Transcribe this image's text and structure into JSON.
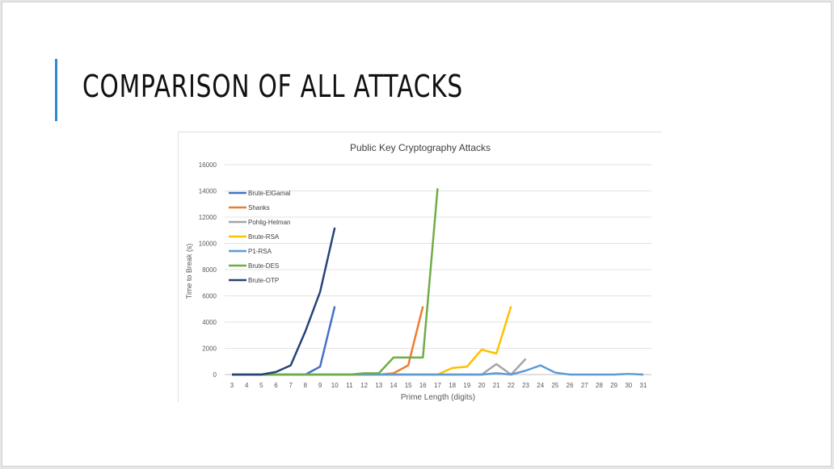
{
  "slide": {
    "title": "COMPARISON OF ALL ATTACKS"
  },
  "chart_data": {
    "type": "line",
    "title": "Public Key Cryptography Attacks",
    "xlabel": "Prime Length (digits)",
    "ylabel": "Time to Break (s)",
    "ylim": [
      0,
      16000
    ],
    "yticks": [
      0,
      2000,
      4000,
      6000,
      8000,
      10000,
      12000,
      14000,
      16000
    ],
    "categories": [
      "3",
      "4",
      "5",
      "6",
      "7",
      "8",
      "9",
      "10",
      "11",
      "12",
      "13",
      "14",
      "15",
      "16",
      "17",
      "18",
      "19",
      "20",
      "21",
      "22",
      "23",
      "24",
      "25",
      "26",
      "27",
      "28",
      "29",
      "30",
      "31"
    ],
    "grid": true,
    "legend_position": "top-left",
    "series": [
      {
        "name": "Brute-ElGamal",
        "color": "#4472c4",
        "values": [
          0,
          0,
          0,
          0,
          0,
          0,
          600,
          5200,
          null,
          null,
          null,
          null,
          null,
          null,
          null,
          null,
          null,
          null,
          null,
          null,
          null,
          null,
          null,
          null,
          null,
          null,
          null,
          null,
          null
        ]
      },
      {
        "name": "Shanks",
        "color": "#ed7d31",
        "values": [
          0,
          0,
          0,
          0,
          0,
          0,
          0,
          0,
          0,
          0,
          0,
          100,
          700,
          5200,
          null,
          null,
          null,
          null,
          null,
          null,
          null,
          null,
          null,
          null,
          null,
          null,
          null,
          null,
          null
        ]
      },
      {
        "name": "Pohlig-Helman",
        "color": "#a5a5a5",
        "values": [
          0,
          0,
          0,
          0,
          0,
          0,
          0,
          0,
          0,
          0,
          0,
          0,
          0,
          0,
          0,
          0,
          0,
          0,
          800,
          0,
          1200,
          null,
          null,
          null,
          null,
          null,
          null,
          null,
          null
        ]
      },
      {
        "name": "Brute-RSA",
        "color": "#ffc000",
        "values": [
          0,
          0,
          0,
          0,
          0,
          0,
          0,
          0,
          0,
          0,
          0,
          0,
          0,
          0,
          0,
          500,
          600,
          1900,
          1600,
          5200,
          null,
          null,
          null,
          null,
          null,
          null,
          null,
          null,
          null
        ]
      },
      {
        "name": "P1-RSA",
        "color": "#5b9bd5",
        "values": [
          0,
          0,
          0,
          0,
          0,
          0,
          0,
          0,
          0,
          0,
          0,
          0,
          0,
          0,
          0,
          0,
          0,
          0,
          100,
          0,
          300,
          700,
          150,
          0,
          0,
          0,
          0,
          50,
          0
        ]
      },
      {
        "name": "Brute-DES",
        "color": "#70ad47",
        "values": [
          0,
          0,
          0,
          0,
          0,
          0,
          0,
          0,
          0,
          100,
          100,
          1300,
          1300,
          1300,
          14200,
          null,
          null,
          null,
          null,
          null,
          null,
          null,
          null,
          null,
          null,
          null,
          null,
          null,
          null
        ]
      },
      {
        "name": "Brute-OTP",
        "color": "#264478",
        "values": [
          0,
          0,
          0,
          200,
          700,
          3300,
          6300,
          11200,
          null,
          null,
          null,
          null,
          null,
          null,
          null,
          null,
          null,
          null,
          null,
          null,
          null,
          null,
          null,
          null,
          null,
          null,
          null,
          null,
          null
        ]
      }
    ]
  }
}
